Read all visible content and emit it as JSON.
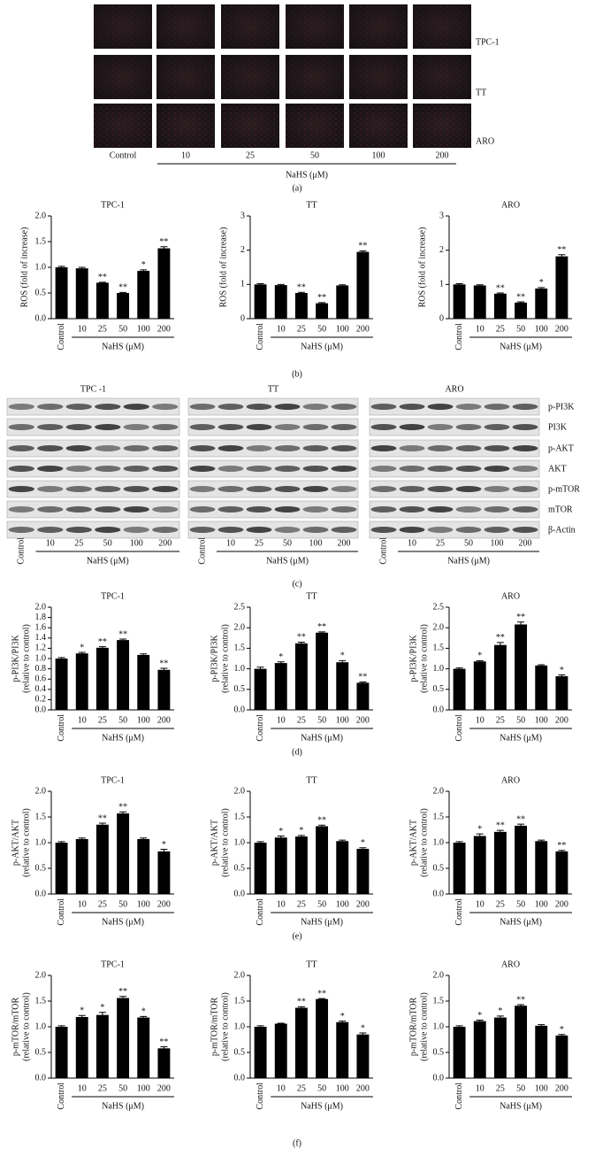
{
  "panel_labels": [
    "(a)",
    "(b)",
    "(c)",
    "(d)",
    "(e)",
    "(f)"
  ],
  "micrographs": {
    "rows": [
      "TPC-1",
      "TT",
      "ARO"
    ],
    "columns": [
      "Control",
      "10",
      "25",
      "50",
      "100",
      "200"
    ],
    "axis_label": "NaHS (μM)"
  },
  "blots": {
    "groups": [
      "TPC -1",
      "TT",
      "ARO"
    ],
    "rows": [
      "p-PI3K",
      "PI3K",
      "p-AKT",
      "AKT",
      "p-mTOR",
      "mTOR",
      "β-Actin"
    ],
    "columns": [
      "Control",
      "10",
      "25",
      "50",
      "100",
      "200"
    ],
    "axis_label": "NaHS (μM)"
  },
  "chart_data": [
    {
      "type": "bar",
      "title": "TPC-1",
      "ylabel": [
        "ROS (fold of increase)"
      ],
      "xlabel": "NaHS (μM)",
      "categories": [
        "Control",
        "10",
        "25",
        "50",
        "100",
        "200"
      ],
      "values": [
        1.0,
        0.98,
        0.7,
        0.5,
        0.93,
        1.37
      ],
      "errors": [
        0.02,
        0.02,
        0.01,
        0.01,
        0.02,
        0.03
      ],
      "annotations": [
        null,
        null,
        "**",
        "**",
        "*",
        "**"
      ],
      "color": "#000000",
      "ylim": [
        0,
        2
      ],
      "yticks": [
        {
          "value": 0,
          "label": "0.0"
        },
        {
          "value": 0.5,
          "label": "0.5"
        },
        {
          "value": 1,
          "label": "1.0"
        },
        {
          "value": 1.5,
          "label": "1.5"
        },
        {
          "value": 2,
          "label": "2.0"
        }
      ]
    },
    {
      "type": "bar",
      "title": "TT",
      "ylabel": [
        "ROS (fold of increase)"
      ],
      "xlabel": "NaHS (μM)",
      "categories": [
        "Control",
        "10",
        "25",
        "50",
        "100",
        "200"
      ],
      "values": [
        1.0,
        0.98,
        0.75,
        0.45,
        0.97,
        1.95
      ],
      "errors": [
        0.02,
        0.02,
        0.02,
        0.02,
        0.02,
        0.03
      ],
      "annotations": [
        null,
        null,
        "**",
        "**",
        null,
        "**"
      ],
      "color": "#000000",
      "ylim": [
        0,
        3
      ],
      "yticks": [
        0,
        1,
        2,
        3
      ]
    },
    {
      "type": "bar",
      "title": "ARO",
      "ylabel": [
        "ROS (fold of increase)"
      ],
      "xlabel": "NaHS (μM)",
      "categories": [
        "Control",
        "10",
        "25",
        "50",
        "100",
        "200"
      ],
      "values": [
        1.0,
        0.97,
        0.73,
        0.47,
        0.88,
        1.82
      ],
      "errors": [
        0.02,
        0.02,
        0.02,
        0.02,
        0.03,
        0.05
      ],
      "annotations": [
        null,
        null,
        "**",
        "**",
        "*",
        "**"
      ],
      "color": "#000000",
      "ylim": [
        0,
        3
      ],
      "yticks": [
        0,
        1,
        2,
        3
      ]
    },
    {
      "type": "bar",
      "title": "TPC-1",
      "ylabel": [
        "p-PI3K/PI3K",
        "(relative to control)"
      ],
      "xlabel": "NaHS (μM)",
      "categories": [
        "Control",
        "10",
        "25",
        "50",
        "100",
        "200"
      ],
      "values": [
        1.0,
        1.1,
        1.21,
        1.36,
        1.07,
        0.78
      ],
      "errors": [
        0.02,
        0.02,
        0.02,
        0.02,
        0.02,
        0.03
      ],
      "annotations": [
        null,
        "*",
        "**",
        "**",
        null,
        "**"
      ],
      "color": "#000000",
      "ylim": [
        0,
        2
      ],
      "yticks": [
        {
          "value": 0,
          "label": "0.0"
        },
        {
          "value": 0.2,
          "label": "0.2"
        },
        {
          "value": 0.4,
          "label": "0.4"
        },
        {
          "value": 0.6,
          "label": "0.6"
        },
        {
          "value": 0.8,
          "label": "0.8"
        },
        {
          "value": 1,
          "label": "1.0"
        },
        {
          "value": 1.2,
          "label": "1.2"
        },
        {
          "value": 1.4,
          "label": "1.4"
        },
        {
          "value": 1.6,
          "label": "1.6"
        },
        {
          "value": 1.8,
          "label": "1.8"
        },
        {
          "value": 2,
          "label": "2.0"
        }
      ]
    },
    {
      "type": "bar",
      "title": "TT",
      "ylabel": [
        "p-PI3K/PI3K",
        "(relative to control)"
      ],
      "xlabel": "NaHS (μM)",
      "categories": [
        "Control",
        "10",
        "25",
        "50",
        "100",
        "200"
      ],
      "values": [
        1.0,
        1.14,
        1.62,
        1.88,
        1.16,
        0.66
      ],
      "errors": [
        0.04,
        0.03,
        0.03,
        0.02,
        0.04,
        0.02
      ],
      "annotations": [
        null,
        "*",
        "**",
        "**",
        "*",
        "**"
      ],
      "color": "#000000",
      "ylim": [
        0,
        2.5
      ],
      "yticks": [
        {
          "value": 0,
          "label": "0.0"
        },
        {
          "value": 0.5,
          "label": "0.5"
        },
        {
          "value": 1,
          "label": "1.0"
        },
        {
          "value": 1.5,
          "label": "1.5"
        },
        {
          "value": 2,
          "label": "2.0"
        },
        {
          "value": 2.5,
          "label": "2.5"
        }
      ]
    },
    {
      "type": "bar",
      "title": "ARO",
      "ylabel": [
        "p-PI3K/PI3K",
        "(relative to control)"
      ],
      "xlabel": "NaHS (μM)",
      "categories": [
        "Control",
        "10",
        "25",
        "50",
        "100",
        "200"
      ],
      "values": [
        1.0,
        1.18,
        1.58,
        2.08,
        1.08,
        0.82
      ],
      "errors": [
        0.02,
        0.02,
        0.06,
        0.06,
        0.02,
        0.03
      ],
      "annotations": [
        null,
        "*",
        "**",
        "**",
        null,
        "*"
      ],
      "color": "#000000",
      "ylim": [
        0,
        2.5
      ],
      "yticks": [
        {
          "value": 0,
          "label": "0.0"
        },
        {
          "value": 0.5,
          "label": "0.5"
        },
        {
          "value": 1,
          "label": "1.0"
        },
        {
          "value": 1.5,
          "label": "1.5"
        },
        {
          "value": 2,
          "label": "2.0"
        },
        {
          "value": 2.5,
          "label": "2.5"
        }
      ]
    },
    {
      "type": "bar",
      "title": "TPC-1",
      "ylabel": [
        "p-AKT/AKT",
        "(relative to control)"
      ],
      "xlabel": "NaHS (μM)",
      "categories": [
        "Control",
        "10",
        "25",
        "50",
        "100",
        "200"
      ],
      "values": [
        1.0,
        1.07,
        1.35,
        1.57,
        1.07,
        0.83
      ],
      "errors": [
        0.02,
        0.02,
        0.03,
        0.03,
        0.02,
        0.04
      ],
      "annotations": [
        null,
        null,
        "**",
        "**",
        null,
        "*"
      ],
      "color": "#000000",
      "ylim": [
        0,
        2
      ],
      "yticks": [
        {
          "value": 0,
          "label": "0.0"
        },
        {
          "value": 0.5,
          "label": "0.5"
        },
        {
          "value": 1,
          "label": "1.0"
        },
        {
          "value": 1.5,
          "label": "1.5"
        },
        {
          "value": 2,
          "label": "2.0"
        }
      ]
    },
    {
      "type": "bar",
      "title": "TT",
      "ylabel": [
        "p-AKT/AKT",
        "(relative to control)"
      ],
      "xlabel": "NaHS (μM)",
      "categories": [
        "Control",
        "10",
        "25",
        "50",
        "100",
        "200"
      ],
      "values": [
        1.0,
        1.1,
        1.12,
        1.32,
        1.03,
        0.88
      ],
      "errors": [
        0.02,
        0.03,
        0.02,
        0.02,
        0.02,
        0.02
      ],
      "annotations": [
        null,
        "*",
        "*",
        "**",
        null,
        "*"
      ],
      "color": "#000000",
      "ylim": [
        0,
        2
      ],
      "yticks": [
        {
          "value": 0,
          "label": "0.0"
        },
        {
          "value": 0.5,
          "label": "0.5"
        },
        {
          "value": 1,
          "label": "1.0"
        },
        {
          "value": 1.5,
          "label": "1.5"
        },
        {
          "value": 2,
          "label": "2.0"
        }
      ]
    },
    {
      "type": "bar",
      "title": "ARO",
      "ylabel": [
        "p-AKT/AKT",
        "(relative to control)"
      ],
      "xlabel": "NaHS (μM)",
      "categories": [
        "Control",
        "10",
        "25",
        "50",
        "100",
        "200"
      ],
      "values": [
        1.0,
        1.13,
        1.21,
        1.33,
        1.03,
        0.83
      ],
      "errors": [
        0.02,
        0.04,
        0.03,
        0.03,
        0.02,
        0.02
      ],
      "annotations": [
        null,
        "*",
        "**",
        "**",
        null,
        "**"
      ],
      "color": "#000000",
      "ylim": [
        0,
        2
      ],
      "yticks": [
        {
          "value": 0,
          "label": "0.0"
        },
        {
          "value": 0.5,
          "label": "0.5"
        },
        {
          "value": 1,
          "label": "1.0"
        },
        {
          "value": 1.5,
          "label": "1.5"
        },
        {
          "value": 2,
          "label": "2.0"
        }
      ]
    },
    {
      "type": "bar",
      "title": "TPC-1",
      "ylabel": [
        "p-mTOR/mTOR",
        "(relative to control)"
      ],
      "xlabel": "NaHS (μM)",
      "categories": [
        "Control",
        "10",
        "25",
        "50",
        "100",
        "200"
      ],
      "values": [
        1.0,
        1.19,
        1.23,
        1.56,
        1.18,
        0.58
      ],
      "errors": [
        0.02,
        0.03,
        0.05,
        0.03,
        0.02,
        0.03
      ],
      "annotations": [
        null,
        "*",
        "*",
        "**",
        "*",
        "**"
      ],
      "color": "#000000",
      "ylim": [
        0,
        2
      ],
      "yticks": [
        {
          "value": 0,
          "label": "0.0"
        },
        {
          "value": 0.5,
          "label": "0.5"
        },
        {
          "value": 1,
          "label": "1.0"
        },
        {
          "value": 1.5,
          "label": "1.5"
        },
        {
          "value": 2,
          "label": "2.0"
        }
      ]
    },
    {
      "type": "bar",
      "title": "TT",
      "ylabel": [
        "p-mTOR/mTOR",
        "(relative to control)"
      ],
      "xlabel": "NaHS (μM)",
      "categories": [
        "Control",
        "10",
        "25",
        "50",
        "100",
        "200"
      ],
      "values": [
        1.0,
        1.06,
        1.37,
        1.54,
        1.09,
        0.85
      ],
      "errors": [
        0.02,
        0.01,
        0.02,
        0.01,
        0.02,
        0.03
      ],
      "annotations": [
        null,
        null,
        "**",
        "**",
        "*",
        "*"
      ],
      "color": "#000000",
      "ylim": [
        0,
        2
      ],
      "yticks": [
        {
          "value": 0,
          "label": "0.0"
        },
        {
          "value": 0.5,
          "label": "0.5"
        },
        {
          "value": 1,
          "label": "1.0"
        },
        {
          "value": 1.5,
          "label": "1.5"
        },
        {
          "value": 2,
          "label": "2.0"
        }
      ]
    },
    {
      "type": "bar",
      "title": "ARO",
      "ylabel": [
        "p-mTOR/mTOR",
        "(relative to control)"
      ],
      "xlabel": "NaHS (μM)",
      "categories": [
        "Control",
        "10",
        "25",
        "50",
        "100",
        "200"
      ],
      "values": [
        1.0,
        1.11,
        1.18,
        1.41,
        1.02,
        0.83
      ],
      "errors": [
        0.02,
        0.02,
        0.03,
        0.02,
        0.02,
        0.02
      ],
      "annotations": [
        null,
        "*",
        "*",
        "**",
        null,
        "*"
      ],
      "color": "#000000",
      "ylim": [
        0,
        2
      ],
      "yticks": [
        {
          "value": 0,
          "label": "0.0"
        },
        {
          "value": 0.5,
          "label": "0.5"
        },
        {
          "value": 1,
          "label": "1.0"
        },
        {
          "value": 1.5,
          "label": "1.5"
        },
        {
          "value": 2,
          "label": "2.0"
        }
      ]
    }
  ]
}
